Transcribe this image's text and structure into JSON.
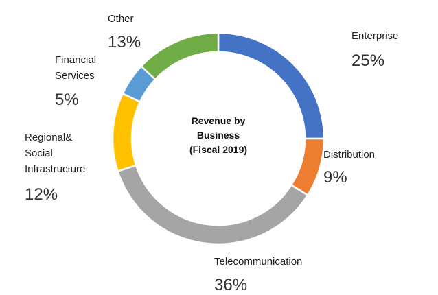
{
  "chart_data": {
    "type": "pie",
    "variant": "donut",
    "center_title": [
      "Revenue by",
      "Business",
      "(Fiscal 2019)"
    ],
    "slices": [
      {
        "label": [
          "Enterprise"
        ],
        "value": 25,
        "display": "25%",
        "color": "#4472C4"
      },
      {
        "label": [
          "Distribution"
        ],
        "value": 9,
        "display": "9%",
        "color": "#ED7D31"
      },
      {
        "label": [
          "Telecommunication"
        ],
        "value": 36,
        "display": "36%",
        "color": "#A5A5A5"
      },
      {
        "label": [
          "Regional&",
          "Social",
          "Infrastructure"
        ],
        "value": 12,
        "display": "12%",
        "color": "#FFC000"
      },
      {
        "label": [
          "Financial",
          "Services"
        ],
        "value": 5,
        "display": "5%",
        "color": "#5B9BD5"
      },
      {
        "label": [
          "Other"
        ],
        "value": 13,
        "display": "13%",
        "color": "#70AD47"
      }
    ]
  }
}
